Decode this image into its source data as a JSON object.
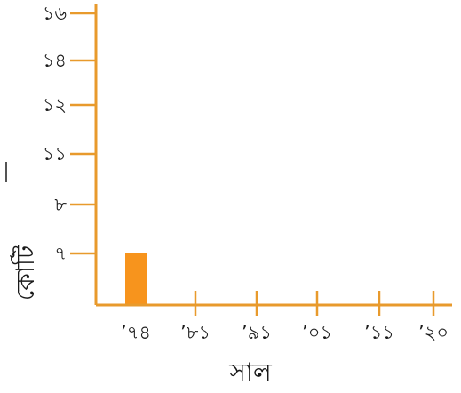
{
  "chart_data": {
    "type": "bar",
    "categories": [
      "’৭৪",
      "’৮১",
      "’৯১",
      "’০১",
      "’১১",
      "’২০"
    ],
    "values": [
      7,
      null,
      null,
      null,
      null,
      null
    ],
    "xlabel": "সাল",
    "ylabel": "কোটি",
    "ylim": [
      6,
      16.5
    ],
    "y_ticks": [
      {
        "value": 7,
        "label": "৭"
      },
      {
        "value": 8,
        "label": "৮"
      },
      {
        "value": 11,
        "label": "১১"
      },
      {
        "value": 12,
        "label": "১২"
      },
      {
        "value": 14,
        "label": "১৪"
      },
      {
        "value": 16,
        "label": "১৬"
      }
    ],
    "grid": false,
    "colors": {
      "axis": "#E89A2C",
      "bar": "#F7941D",
      "text": "#1a1a1a"
    }
  }
}
